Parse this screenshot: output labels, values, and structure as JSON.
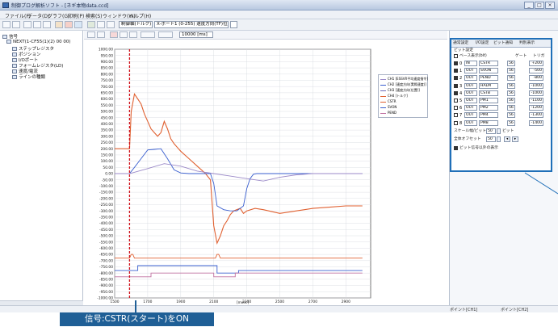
{
  "window": {
    "title": "制御プログ解析ソフト - [ネギ本物data.ccd]",
    "buttons": [
      "_",
      "□",
      "×"
    ]
  },
  "menu": [
    "ファイル(F)",
    "データ(D)",
    "グラフ(G)",
    "印刷(P)",
    "検索(S)",
    "ウィンドウ(W)",
    "ヘルプ(H)"
  ],
  "toolbar": {
    "select1": "制御軸(トルク)",
    "select2": "X-ポート1 (0-255) 速度方向(TF)位置決め",
    "select3": "",
    "range_label": "10000 [ms]"
  },
  "tree": {
    "root": "信号",
    "items": [
      "NEXT(1-CF55(1)(2) 00 00)",
      "ステップレジスタ",
      "ポジション",
      "I/Oポート",
      "フォームレジスタ(LD)",
      "速度/電流",
      "ラインの種類"
    ]
  },
  "chart_data": {
    "type": "line",
    "ylim": [
      -1000,
      1000
    ],
    "xlim": [
      1500,
      3050
    ],
    "y_ticks": [
      1000,
      950,
      900,
      850,
      800,
      750,
      700,
      650,
      600,
      550,
      500,
      450,
      400,
      350,
      300,
      250,
      200,
      150,
      100,
      50,
      0,
      -50,
      -100,
      -150,
      -200,
      -250,
      -300,
      -350,
      -400,
      -450,
      -500,
      -550,
      -600,
      -650,
      -700,
      -750,
      -800,
      -850,
      -900,
      -950,
      -1000
    ],
    "y_tick_labels": [
      "1000.00",
      "950.00",
      "900.00",
      "850.00",
      "800.00",
      "750.00",
      "700.00",
      "650.00",
      "600.00",
      "550.00",
      "500.00",
      "450.00",
      "400.00",
      "350.00",
      "300.00",
      "250.00",
      "200.00",
      "150.00",
      "100.00",
      "50.00",
      "0.00",
      "-50.00",
      "-100.00",
      "-150.00",
      "-200.00",
      "-250.00",
      "-300.00",
      "-350.00",
      "-400.00",
      "-450.00",
      "-500.00",
      "-550.00",
      "-600.00",
      "-650.00",
      "-700.00",
      "-750.00",
      "-800.00",
      "-850.00",
      "-900.00",
      "-950.00",
      "-1000.00"
    ],
    "x_ticks": [
      1500,
      1700,
      1900,
      2100,
      2300,
      2500,
      2700,
      2900
    ],
    "x_tick_labels": [
      "1500",
      "1700",
      "1900",
      "2100",
      "2300",
      "2500",
      "2700",
      "2900"
    ],
    "xlabel": "[msec]",
    "marker_x": 1590,
    "series": [
      {
        "name": "トルク(平均速度指令)",
        "color": "#e06030",
        "x": [
          1500,
          1590,
          1600,
          1620,
          1640,
          1660,
          1680,
          1700,
          1720,
          1740,
          1760,
          1780,
          1800,
          1820,
          1840,
          1860,
          1880,
          1900,
          1950,
          2000,
          2050,
          2080,
          2100,
          2120,
          2140,
          2160,
          2180,
          2200,
          2220,
          2240,
          2260,
          2280,
          2300,
          2350,
          2400,
          2500,
          2600,
          2700,
          2800,
          2900,
          3000
        ],
        "y": [
          200,
          200,
          500,
          640,
          600,
          560,
          480,
          420,
          360,
          330,
          300,
          330,
          420,
          360,
          280,
          240,
          210,
          180,
          120,
          60,
          0,
          -50,
          -420,
          -560,
          -500,
          -420,
          -380,
          -330,
          -300,
          -290,
          -280,
          -320,
          -300,
          -280,
          -290,
          -320,
          -300,
          -280,
          -270,
          -260,
          -260
        ]
      },
      {
        "name": "速度(実際速度)",
        "color": "#3a5fcf",
        "x": [
          1500,
          1560,
          1590,
          1620,
          1660,
          1700,
          1740,
          1780,
          1820,
          1860,
          1900,
          1950,
          2000,
          2050,
          2080,
          2100,
          2120,
          2160,
          2200,
          2240,
          2280,
          2300,
          2320,
          2340,
          2360,
          2400,
          2500,
          2700,
          3000
        ],
        "y": [
          0,
          0,
          0,
          50,
          120,
          190,
          195,
          200,
          120,
          30,
          5,
          0,
          0,
          0,
          0,
          -80,
          -260,
          -290,
          -300,
          -300,
          -260,
          -120,
          -40,
          -5,
          0,
          0,
          0,
          0,
          0
        ]
      },
      {
        "name": "位置(指令位置)",
        "color": "#9b8ac8",
        "x": [
          1500,
          1590,
          1700,
          1800,
          1900,
          2000,
          2100,
          2200,
          2300,
          2400,
          2500,
          2600,
          2700,
          2800,
          2900,
          3000
        ],
        "y": [
          0,
          0,
          40,
          80,
          60,
          20,
          0,
          -20,
          -40,
          -60,
          -30,
          -10,
          0,
          0,
          0,
          0
        ]
      },
      {
        "name": "CSTR",
        "color": "#e06030",
        "x": [
          1500,
          1590,
          1600,
          1610,
          1620,
          2110,
          2120,
          2130,
          2140,
          2150,
          3000
        ],
        "y": [
          -680,
          -680,
          -650,
          -650,
          -680,
          -680,
          -650,
          -650,
          -680,
          -680,
          -680
        ]
      },
      {
        "name": "SVON",
        "color": "#3a5fcf",
        "x": [
          1500,
          1640,
          1640,
          2120,
          2120,
          2250,
          2250,
          3000
        ],
        "y": [
          -780,
          -780,
          -740,
          -740,
          -800,
          -800,
          -780,
          -780
        ]
      },
      {
        "name": "PEND",
        "color": "#c070a0",
        "x": [
          1500,
          1720,
          1720,
          2100,
          2100,
          2230,
          2230,
          3000
        ],
        "y": [
          -830,
          -830,
          -800,
          -800,
          -830,
          -830,
          -800,
          -800
        ]
      }
    ],
    "legend_position": "top-right"
  },
  "legend": {
    "entries": [
      "CH1 [ESSVR平均速度指令]",
      "CH2 [速度方向(実際速度)]",
      "CH3 [速度方向(位置)]",
      "CH4 [トルク]",
      "CSTR",
      "SVON",
      "PEND"
    ],
    "colors": [
      "#9b8ac8",
      "#3a5fcf",
      "#6a6ab8",
      "#e06030",
      "#e06030",
      "#3a5fcf",
      "#c070a0"
    ]
  },
  "signal_panel": {
    "tabs": [
      "通常設定",
      "I/O設定",
      "ビット通知",
      "判別表示"
    ],
    "section_title": "ビット設定",
    "mode_label": "ベース表示(bit)",
    "col_headers": [
      "",
      "ゲート",
      "トリガ"
    ],
    "rows": [
      {
        "num": "0",
        "type": "IN",
        "name": "CSTR",
        "val": "56",
        "offset": "+200"
      },
      {
        "num": "1",
        "type": "OUT",
        "name": "SVON",
        "val": "56",
        "offset": "-500"
      },
      {
        "num": "2",
        "type": "OUT",
        "name": "PEND",
        "val": "56",
        "offset": "-800"
      },
      {
        "num": "3",
        "type": "OUT",
        "name": "HALM",
        "val": "56",
        "offset": "-1000"
      },
      {
        "num": "4",
        "type": "OUT",
        "name": "CSTB",
        "val": "56",
        "offset": "-1000"
      },
      {
        "num": "5",
        "type": "OUT",
        "name": "PM1",
        "val": "56",
        "offset": "-1100"
      },
      {
        "num": "6",
        "type": "OUT",
        "name": "PM2",
        "val": "56",
        "offset": "-1200"
      },
      {
        "num": "7",
        "type": "OUT",
        "name": "PM4",
        "val": "56",
        "offset": "-1300"
      },
      {
        "num": "8",
        "type": "OUT",
        "name": "PM8",
        "val": "56",
        "offset": "-1400"
      }
    ],
    "gain_label": "スケール幅/ビット",
    "gain_value": "50",
    "gain_unit": "ビット",
    "offset_label": "全体オフセット",
    "offset_value": "50",
    "bottom_check": "ビット信号以外の表示"
  },
  "status": [
    "ポイント[CH1]",
    "ポイント[CH2]"
  ],
  "callout": "信号:CSTR(スタート)をON"
}
